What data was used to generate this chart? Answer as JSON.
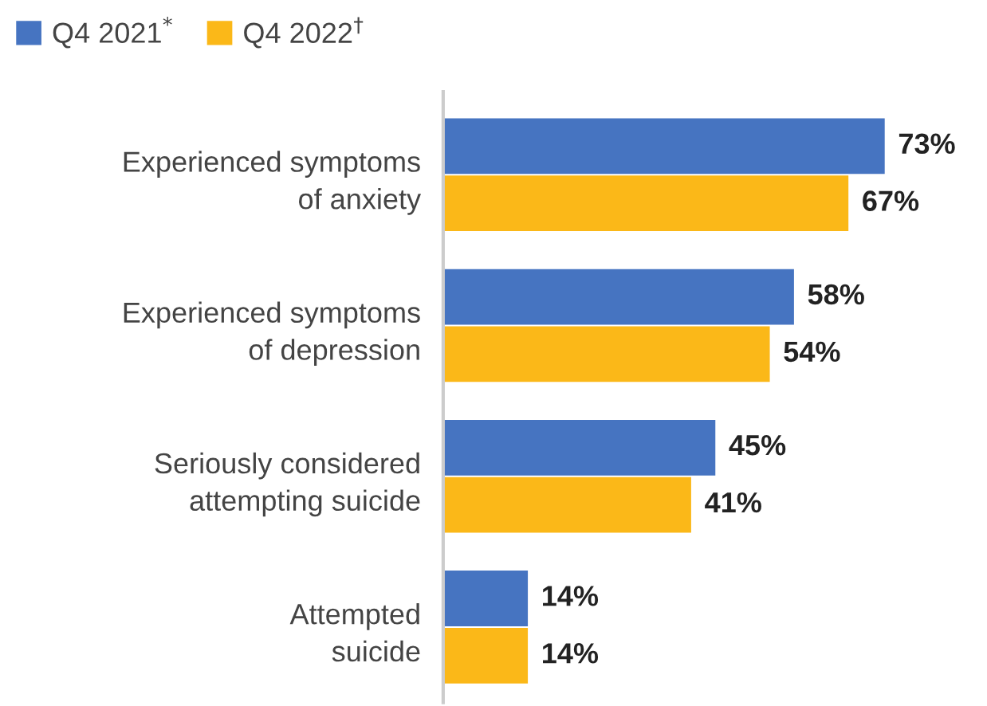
{
  "chart_data": {
    "type": "bar",
    "orientation": "horizontal",
    "categories": [
      "Experienced symptoms\nof anxiety",
      "Experienced symptoms\nof depression",
      "Seriously considered\nattempting suicide",
      "Attempted\nsuicide"
    ],
    "series": [
      {
        "name": "Q4 2021$^{*}$",
        "color": "#4674c1",
        "values": [
          73,
          58,
          45,
          14
        ],
        "value_labels": [
          "73%",
          "58%",
          "45%",
          "14%"
        ]
      },
      {
        "name": "Q4 2022$^{†}$",
        "color": "#fbb818",
        "values": [
          67,
          54,
          41,
          14
        ],
        "value_labels": [
          "67%",
          "54%",
          "41%",
          "14%"
        ]
      }
    ],
    "legend": "top left",
    "grid": false
  }
}
